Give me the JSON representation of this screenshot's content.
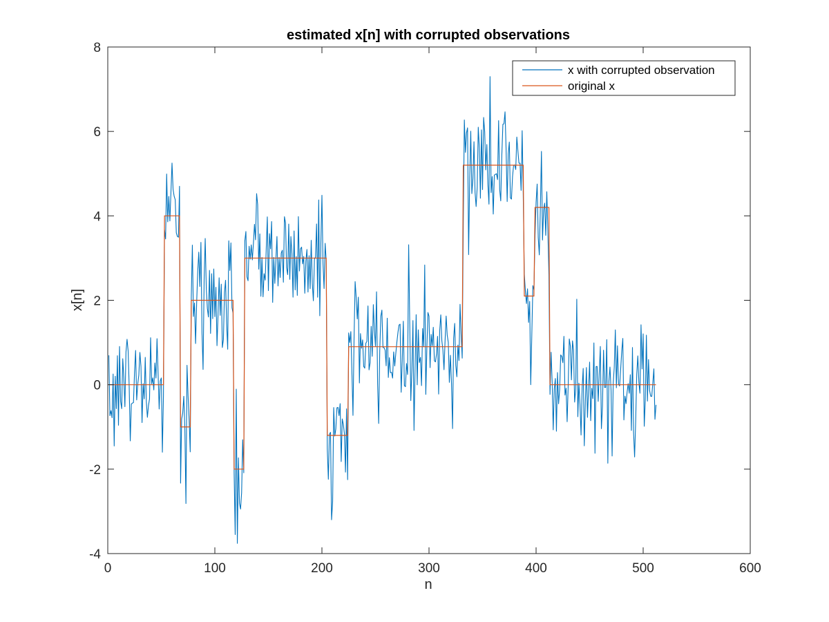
{
  "chart_data": {
    "type": "line",
    "title": "estimated x[n] with corrupted observations",
    "xlabel": "n",
    "ylabel": "x[n]",
    "xlim": [
      0,
      600
    ],
    "ylim": [
      -4,
      8
    ],
    "xticks": [
      0,
      100,
      200,
      300,
      400,
      500,
      600
    ],
    "yticks": [
      -4,
      -2,
      0,
      2,
      4,
      6,
      8
    ],
    "grid": false,
    "legend_position": "top-right",
    "n_samples": 512,
    "series": [
      {
        "name": "x with corrupted observation",
        "color": "#0072BD",
        "noise_sd": 0.75,
        "notable_points": [
          {
            "x": 60,
            "y": 5.25
          },
          {
            "x": 119,
            "y": -3.55
          },
          {
            "x": 209,
            "y": -3.2
          },
          {
            "x": 357,
            "y": 7.3
          },
          {
            "x": 395,
            "y": 0.0
          }
        ]
      },
      {
        "name": "original x",
        "color": "#D95319",
        "segments": [
          {
            "start": 1,
            "end": 52,
            "value": 0
          },
          {
            "start": 53,
            "end": 67,
            "value": 4
          },
          {
            "start": 68,
            "end": 77,
            "value": -1
          },
          {
            "start": 78,
            "end": 117,
            "value": 2
          },
          {
            "start": 118,
            "end": 127,
            "value": -2
          },
          {
            "start": 128,
            "end": 204,
            "value": 3
          },
          {
            "start": 205,
            "end": 224,
            "value": -1.2
          },
          {
            "start": 225,
            "end": 331,
            "value": 0.9
          },
          {
            "start": 332,
            "end": 388,
            "value": 5.2
          },
          {
            "start": 389,
            "end": 398,
            "value": 2.1
          },
          {
            "start": 399,
            "end": 412,
            "value": 4.2
          },
          {
            "start": 413,
            "end": 512,
            "value": 0
          }
        ]
      }
    ]
  }
}
